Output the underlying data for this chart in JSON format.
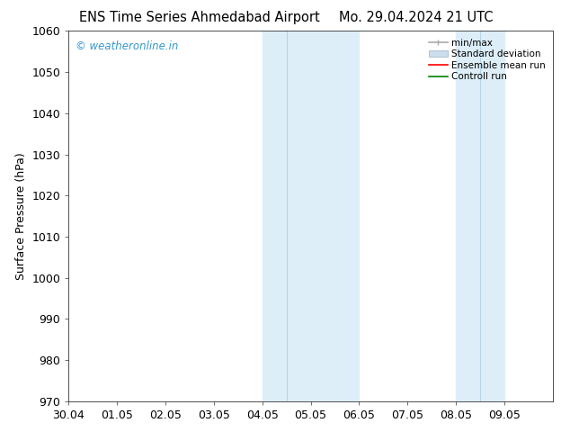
{
  "title_left": "ENS Time Series Ahmedabad Airport",
  "title_right": "Mo. 29.04.2024 21 UTC",
  "ylabel": "Surface Pressure (hPa)",
  "xlim": [
    0,
    10
  ],
  "ylim": [
    970,
    1060
  ],
  "yticks": [
    970,
    980,
    990,
    1000,
    1010,
    1020,
    1030,
    1040,
    1050,
    1060
  ],
  "xtick_labels": [
    "30.04",
    "01.05",
    "02.05",
    "03.05",
    "04.05",
    "05.05",
    "06.05",
    "07.05",
    "08.05",
    "09.05"
  ],
  "xtick_positions": [
    0,
    1,
    2,
    3,
    4,
    5,
    6,
    7,
    8,
    9
  ],
  "shaded_bands": [
    {
      "xmin": 4.0,
      "xmax": 4.5,
      "color": "#ddeef8"
    },
    {
      "xmin": 4.5,
      "xmax": 6.0,
      "color": "#ddeef8"
    },
    {
      "xmin": 8.0,
      "xmax": 8.5,
      "color": "#ddeef8"
    },
    {
      "xmin": 8.5,
      "xmax": 9.0,
      "color": "#ddeef8"
    }
  ],
  "band_vlines": [
    4.0,
    4.5,
    6.0,
    8.0,
    8.5,
    9.0
  ],
  "watermark_text": "© weatheronline.in",
  "watermark_color": "#3399cc",
  "legend_labels": [
    "min/max",
    "Standard deviation",
    "Ensemble mean run",
    "Controll run"
  ],
  "background_color": "#ffffff",
  "spine_color": "#333333",
  "tick_color": "#333333",
  "font_size": 9,
  "title_fontsize": 10.5
}
